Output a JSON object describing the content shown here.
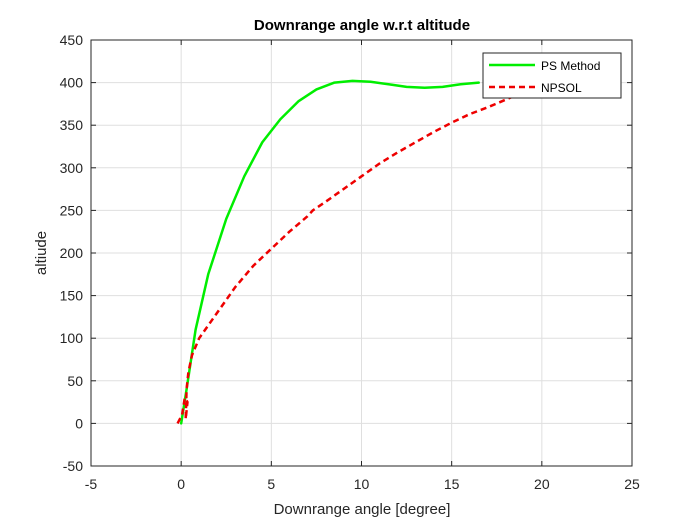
{
  "chart_data": {
    "type": "line",
    "title": "Downrange angle w.r.t altitude",
    "xlabel": "Downrange angle [degree]",
    "ylabel": "altiude",
    "xlim": [
      -5,
      25
    ],
    "ylim": [
      -50,
      450
    ],
    "xticks": [
      -5,
      0,
      5,
      10,
      15,
      20,
      25
    ],
    "yticks": [
      -50,
      0,
      50,
      100,
      150,
      200,
      250,
      300,
      350,
      400,
      450
    ],
    "grid": true,
    "legend_position": "top-right",
    "series": [
      {
        "name": "PS Method",
        "color": "#00ee00",
        "style": "solid",
        "x": [
          0.0,
          0.3,
          0.8,
          1.5,
          2.5,
          3.5,
          4.5,
          5.5,
          6.5,
          7.5,
          8.5,
          9.5,
          10.5,
          11.5,
          12.5,
          13.5,
          14.5,
          15.5,
          16.5
        ],
        "y": [
          0,
          40,
          110,
          175,
          240,
          290,
          330,
          357,
          378,
          392,
          400,
          402,
          401,
          398,
          395,
          394,
          395,
          398,
          400
        ]
      },
      {
        "name": "NPSOL",
        "color": "#ee0000",
        "style": "dashed",
        "x": [
          -0.2,
          0.05,
          0.2,
          0.35,
          0.25,
          0.3,
          0.4,
          0.6,
          1.0,
          2.0,
          3.0,
          4.0,
          5.0,
          6.0,
          7.0,
          7.3,
          8.0,
          9.0,
          10.0,
          11.0,
          12.0,
          13.0,
          14.0,
          15.0,
          16.0,
          17.0,
          18.0,
          19.0,
          20.0
        ],
        "y": [
          0,
          10,
          30,
          25,
          5,
          40,
          60,
          80,
          100,
          130,
          160,
          185,
          205,
          225,
          243,
          250,
          260,
          275,
          290,
          305,
          318,
          330,
          342,
          353,
          363,
          371,
          380,
          389,
          395
        ]
      }
    ]
  }
}
